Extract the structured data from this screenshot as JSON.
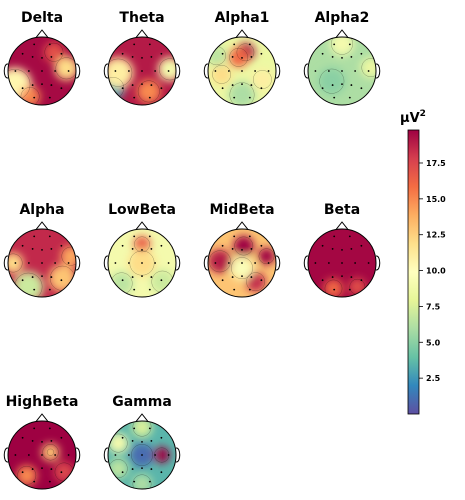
{
  "chart_data": {
    "type": "heatmap",
    "subtype": "eeg-topographic-maps",
    "colormap": "Spectral_r",
    "colormap_stops": [
      "#5e4fa2",
      "#3288bd",
      "#66c2a5",
      "#abdda4",
      "#e6f598",
      "#ffffbf",
      "#fee08b",
      "#fdae61",
      "#f46d43",
      "#d53e4f",
      "#9e0142"
    ],
    "colorbar": {
      "unit": "µV",
      "unit_superscript": "2",
      "vmin": 0,
      "vmax": 19.8,
      "ticks": [
        {
          "value": 2.5,
          "label": "2.5"
        },
        {
          "value": 5.0,
          "label": "5.0"
        },
        {
          "value": 7.5,
          "label": "7.5"
        },
        {
          "value": 10.0,
          "label": "10.0"
        },
        {
          "value": 12.5,
          "label": "12.5"
        },
        {
          "value": 15.0,
          "label": "15.0"
        },
        {
          "value": 17.5,
          "label": "17.5"
        }
      ]
    },
    "panels": [
      {
        "title": "Delta",
        "base": 19.5,
        "spots": [
          {
            "x": -0.8,
            "y": -0.4,
            "r": 0.5,
            "v": 10.5
          },
          {
            "x": 0.72,
            "y": 0.08,
            "r": 0.35,
            "v": 12.0
          },
          {
            "x": -0.35,
            "y": -0.75,
            "r": 0.3,
            "v": 15.0
          },
          {
            "x": 0.35,
            "y": 0.55,
            "r": 0.3,
            "v": 17.0
          }
        ]
      },
      {
        "title": "Theta",
        "base": 19.0,
        "spots": [
          {
            "x": -0.85,
            "y": -0.5,
            "r": 0.35,
            "v": 3.0
          },
          {
            "x": -0.7,
            "y": -0.05,
            "r": 0.45,
            "v": 11.0
          },
          {
            "x": 0.82,
            "y": 0.05,
            "r": 0.35,
            "v": 9.0
          },
          {
            "x": 0.2,
            "y": -0.6,
            "r": 0.35,
            "v": 15.0
          }
        ]
      },
      {
        "title": "Alpha1",
        "base": 8.5,
        "spots": [
          {
            "x": 0.1,
            "y": 0.55,
            "r": 0.28,
            "v": 19.5
          },
          {
            "x": -0.1,
            "y": 0.4,
            "r": 0.3,
            "v": 16.0
          },
          {
            "x": -0.6,
            "y": -0.1,
            "r": 0.3,
            "v": 12.0
          },
          {
            "x": 0.6,
            "y": -0.25,
            "r": 0.3,
            "v": 11.0
          },
          {
            "x": 0.0,
            "y": -0.7,
            "r": 0.4,
            "v": 6.0
          },
          {
            "x": -0.75,
            "y": 0.45,
            "r": 0.3,
            "v": 6.5
          }
        ]
      },
      {
        "title": "Alpha2",
        "base": 6.0,
        "spots": [
          {
            "x": 0.0,
            "y": 0.8,
            "r": 0.35,
            "v": 9.0
          },
          {
            "x": 0.85,
            "y": 0.1,
            "r": 0.3,
            "v": 8.5
          },
          {
            "x": -0.3,
            "y": -0.3,
            "r": 0.4,
            "v": 5.0
          }
        ]
      },
      {
        "title": "Alpha",
        "base": 18.5,
        "spots": [
          {
            "x": -0.4,
            "y": -0.7,
            "r": 0.45,
            "v": 7.0
          },
          {
            "x": 0.6,
            "y": -0.45,
            "r": 0.4,
            "v": 13.0
          },
          {
            "x": -0.85,
            "y": 0.0,
            "r": 0.3,
            "v": 12.0
          },
          {
            "x": 0.85,
            "y": 0.2,
            "r": 0.3,
            "v": 14.0
          }
        ]
      },
      {
        "title": "LowBeta",
        "base": 9.0,
        "spots": [
          {
            "x": 0.0,
            "y": 0.55,
            "r": 0.25,
            "v": 16.5
          },
          {
            "x": 0.0,
            "y": 0.0,
            "r": 0.4,
            "v": 12.0
          },
          {
            "x": -0.6,
            "y": -0.6,
            "r": 0.35,
            "v": 6.5
          },
          {
            "x": 0.6,
            "y": -0.55,
            "r": 0.35,
            "v": 7.0
          }
        ]
      },
      {
        "title": "MidBeta",
        "base": 13.0,
        "spots": [
          {
            "x": 0.05,
            "y": 0.5,
            "r": 0.3,
            "v": 19.8
          },
          {
            "x": 0.72,
            "y": 0.2,
            "r": 0.25,
            "v": 19.8
          },
          {
            "x": -0.65,
            "y": 0.05,
            "r": 0.35,
            "v": 19.0
          },
          {
            "x": 0.4,
            "y": -0.55,
            "r": 0.3,
            "v": 18.5
          },
          {
            "x": 0.0,
            "y": -0.15,
            "r": 0.35,
            "v": 9.5
          }
        ]
      },
      {
        "title": "Beta",
        "base": 19.6,
        "spots": [
          {
            "x": -0.25,
            "y": -0.75,
            "r": 0.28,
            "v": 16.0
          },
          {
            "x": 0.45,
            "y": -0.7,
            "r": 0.25,
            "v": 17.0
          }
        ]
      },
      {
        "title": "HighBeta",
        "base": 19.8,
        "spots": [
          {
            "x": 0.25,
            "y": 0.08,
            "r": 0.11,
            "v": 0.5
          },
          {
            "x": 0.25,
            "y": 0.08,
            "r": 0.26,
            "v": 13.0
          },
          {
            "x": -0.45,
            "y": -0.6,
            "r": 0.3,
            "v": 15.0
          },
          {
            "x": 0.65,
            "y": -0.5,
            "r": 0.3,
            "v": 17.5
          }
        ]
      },
      {
        "title": "Gamma",
        "base": 3.5,
        "spots": [
          {
            "x": 0.58,
            "y": 0.0,
            "r": 0.24,
            "v": 19.8
          },
          {
            "x": -0.7,
            "y": 0.35,
            "r": 0.3,
            "v": 9.0
          },
          {
            "x": 0.0,
            "y": 0.82,
            "r": 0.3,
            "v": 7.5
          },
          {
            "x": -0.7,
            "y": -0.4,
            "r": 0.3,
            "v": 6.5
          },
          {
            "x": 0.0,
            "y": -0.85,
            "r": 0.3,
            "v": 6.0
          },
          {
            "x": 0.0,
            "y": 0.0,
            "r": 0.35,
            "v": 1.0
          }
        ]
      }
    ]
  }
}
